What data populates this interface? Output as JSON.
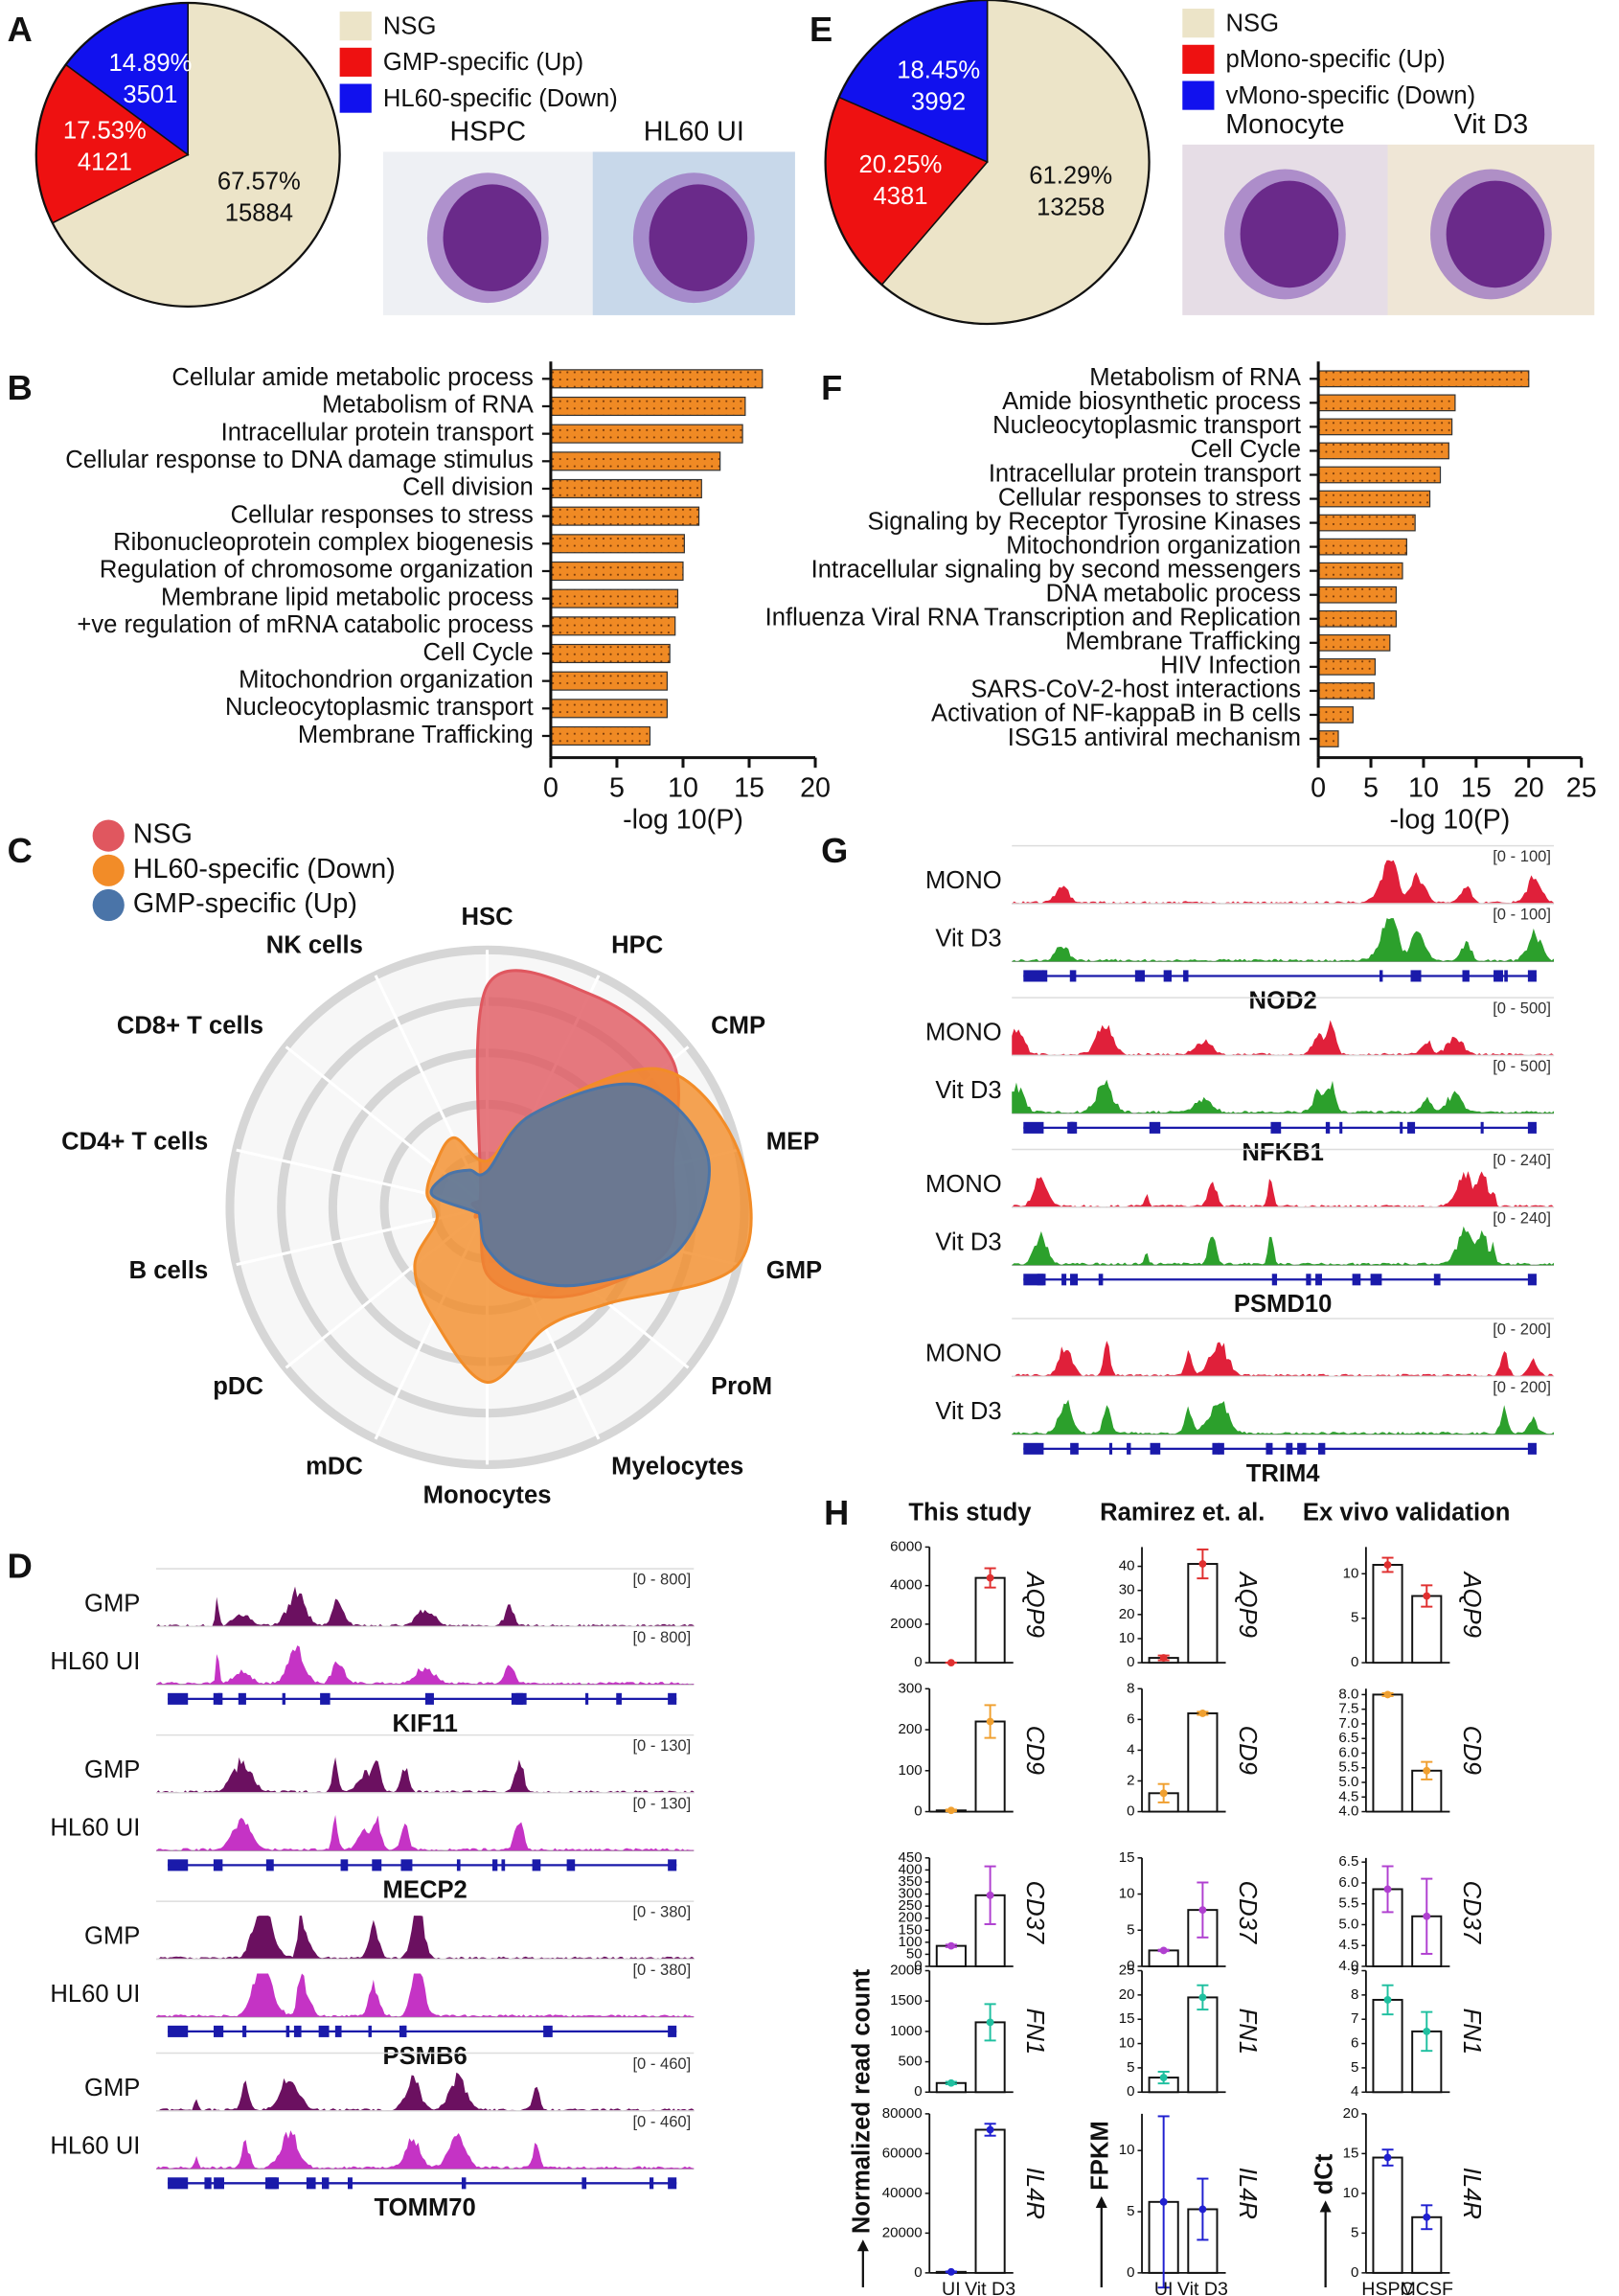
{
  "chart_data": [
    {
      "type": "pie",
      "panel": "A",
      "categories": [
        "NSG",
        "GMP-specific (Up)",
        "HL60-specific (Down)"
      ],
      "values": [
        67.57,
        17.53,
        14.89
      ],
      "value_labels": [
        "67.57%",
        "17.53%",
        "14.89%"
      ],
      "counts": [
        15884,
        4121,
        3501
      ],
      "colors": [
        "#ece4c8",
        "#ee1111",
        "#1111ee"
      ],
      "image_labels": [
        "HSPC",
        "HL60 UI"
      ]
    },
    {
      "type": "pie",
      "panel": "E",
      "categories": [
        "NSG",
        "pMono-specific (Up)",
        "vMono-specific (Down)"
      ],
      "values": [
        61.29,
        20.25,
        18.45
      ],
      "value_labels": [
        "61.29%",
        "20.25%",
        "18.45%"
      ],
      "counts": [
        13258,
        4381,
        3992
      ],
      "colors": [
        "#ece4c8",
        "#ee1111",
        "#1111ee"
      ],
      "image_labels": [
        "Monocyte",
        "Vit D3"
      ]
    },
    {
      "type": "hbar",
      "panel": "B",
      "categories": [
        "Cellular amide metabolic process",
        "Metabolism of RNA",
        "Intracellular protein transport",
        "Cellular response to DNA damage stimulus",
        "Cell division",
        "Cellular responses to stress",
        "Ribonucleoprotein complex biogenesis",
        "Regulation of chromosome organization",
        "Membrane lipid metabolic process",
        "+ve regulation of mRNA catabolic process",
        "Cell Cycle",
        "Mitochondrion organization",
        "Nucleocytoplasmic transport",
        "Membrane Trafficking"
      ],
      "values": [
        16,
        14.7,
        14.5,
        12.8,
        11.4,
        11.2,
        10.1,
        10.0,
        9.6,
        9.4,
        9.0,
        8.8,
        8.8,
        7.5
      ],
      "color": "#f08a24",
      "xlim": [
        0,
        20
      ],
      "xticks": [
        0,
        5,
        10,
        15,
        20
      ],
      "xlabel": "-log 10(P)"
    },
    {
      "type": "hbar",
      "panel": "F",
      "categories": [
        "Metabolism of RNA",
        "Amide biosynthetic process",
        "Nucleocytoplasmic transport",
        "Cell Cycle",
        "Intracellular protein transport",
        "Cellular responses to stress",
        "Signaling by Receptor Tyrosine Kinases",
        "Mitochondrion organization",
        "Intracellular signaling by second messengers",
        "DNA metabolic process",
        "Influenza Viral RNA Transcription and Replication",
        "Membrane Trafficking",
        "HIV Infection",
        "SARS-CoV-2-host interactions",
        "Activation of NF-kappaB in B cells",
        "ISG15 antiviral mechanism"
      ],
      "values": [
        20,
        13,
        12.7,
        12.4,
        11.6,
        10.6,
        9.2,
        8.4,
        8.0,
        7.4,
        7.4,
        6.8,
        5.4,
        5.3,
        3.3,
        1.9
      ],
      "color": "#f08a24",
      "xlim": [
        0,
        25
      ],
      "xticks": [
        0,
        5,
        10,
        15,
        20,
        25
      ],
      "xlabel": "-log 10(P)"
    },
    {
      "type": "radar",
      "panel": "C",
      "axes": [
        "HSC",
        "HPC",
        "CMP",
        "MEP",
        "GMP",
        "ProM",
        "Myelocytes",
        "Monocytes",
        "mDC",
        "pDC",
        "B cells",
        "CD4+ T cells",
        "CD8+ T cells",
        "NK cells"
      ],
      "rlim": [
        0,
        5
      ],
      "rticks": [
        1,
        2,
        3,
        4,
        5
      ],
      "series": [
        {
          "name": "NSG",
          "color": "#e0575f",
          "values": [
            4.3,
            4.6,
            4.6,
            3.7,
            3.6,
            2.6,
            1.9,
            1.3,
            0.3,
            0.3,
            0.2,
            0.3,
            0.2,
            0.3
          ]
        },
        {
          "name": "HL60-specific (Down)",
          "color": "#f28c28",
          "values": [
            0.9,
            2.0,
            4.3,
            5.0,
            5.0,
            3.0,
            2.6,
            3.4,
            2.4,
            1.8,
            1.0,
            1.2,
            1.3,
            1.5
          ]
        },
        {
          "name": "GMP-specific (Up)",
          "color": "#4a74a8",
          "values": [
            0.7,
            2.0,
            3.8,
            4.4,
            3.8,
            2.4,
            1.5,
            0.8,
            0.3,
            0.2,
            0.3,
            1.1,
            1.0,
            0.8
          ]
        }
      ]
    },
    {
      "type": "tracks",
      "panel": "D",
      "tracks": [
        "GMP",
        "HL60 UI"
      ],
      "colors": [
        "#6b1060",
        "#c533c5"
      ],
      "genes": [
        {
          "name": "KIF11",
          "ranges": [
            "[0 - 800]",
            "[0 - 800]"
          ]
        },
        {
          "name": "MECP2",
          "ranges": [
            "[0 - 130]",
            "[0 - 130]"
          ]
        },
        {
          "name": "PSMB6",
          "ranges": [
            "[0 - 380]",
            "[0 - 380]"
          ]
        },
        {
          "name": "TOMM70",
          "ranges": [
            "[0 - 460]",
            "[0 - 460]"
          ]
        }
      ]
    },
    {
      "type": "tracks",
      "panel": "G",
      "tracks": [
        "MONO",
        "Vit D3"
      ],
      "colors": [
        "#e0203a",
        "#2ca02c"
      ],
      "genes": [
        {
          "name": "NOD2",
          "ranges": [
            "[0 - 100]",
            "[0 - 100]"
          ]
        },
        {
          "name": "NFKB1",
          "ranges": [
            "[0 - 500]",
            "[0 - 500]"
          ]
        },
        {
          "name": "PSMD10",
          "ranges": [
            "[0 - 240]",
            "[0 - 240]"
          ]
        },
        {
          "name": "TRIM4",
          "ranges": [
            "[0 - 200]",
            "[0 - 200]"
          ]
        }
      ]
    },
    {
      "type": "bar_grid",
      "panel": "H",
      "columns": [
        {
          "title": "This study",
          "ylabel": "Normalized read count",
          "categories": [
            "UI",
            "Vit D3"
          ],
          "plots": [
            {
              "gene": "AQP9",
              "color": "#e03030",
              "values": [
                0,
                4400
              ],
              "errors": [
                0,
                500
              ],
              "ylim": [
                0,
                6000
              ],
              "yticks": [
                0,
                2000,
                4000,
                6000
              ]
            },
            {
              "gene": "CD9",
              "color": "#f0a030",
              "values": [
                3,
                220
              ],
              "errors": [
                2,
                40
              ],
              "ylim": [
                0,
                300
              ],
              "yticks": [
                0,
                100,
                200,
                300
              ]
            },
            {
              "gene": "CD37",
              "color": "#b040d0",
              "values": [
                85,
                295
              ],
              "errors": [
                5,
                120
              ],
              "ylim": [
                0,
                450
              ],
              "yticks": [
                0,
                50,
                100,
                150,
                200,
                250,
                300,
                350,
                400,
                450
              ]
            },
            {
              "gene": "FN1",
              "color": "#20c0a0",
              "values": [
                150,
                1150
              ],
              "errors": [
                20,
                300
              ],
              "ylim": [
                0,
                2000
              ],
              "yticks": [
                0,
                500,
                1000,
                1500,
                2000
              ]
            },
            {
              "gene": "IL4R",
              "color": "#2020d0",
              "values": [
                500,
                72000
              ],
              "errors": [
                200,
                3000
              ],
              "ylim": [
                0,
                80000
              ],
              "yticks": [
                0,
                20000,
                40000,
                60000,
                80000
              ]
            }
          ]
        },
        {
          "title": "Ramirez et. al.",
          "ylabel": "FPKM",
          "categories": [
            "UI",
            "Vit D3"
          ],
          "plots": [
            {
              "gene": "AQP9",
              "color": "#e03030",
              "values": [
                2,
                41
              ],
              "errors": [
                1,
                6
              ],
              "ylim": [
                0,
                48
              ],
              "yticks": [
                0,
                10,
                20,
                30,
                40
              ]
            },
            {
              "gene": "CD9",
              "color": "#f0a030",
              "values": [
                1.2,
                6.4
              ],
              "errors": [
                0.6,
                0.1
              ],
              "ylim": [
                0,
                8
              ],
              "yticks": [
                0,
                2,
                4,
                6,
                8
              ]
            },
            {
              "gene": "CD37",
              "color": "#b040d0",
              "values": [
                2.2,
                7.8
              ],
              "errors": [
                0.1,
                3.8
              ],
              "ylim": [
                0,
                15
              ],
              "yticks": [
                0,
                5,
                10,
                15
              ]
            },
            {
              "gene": "FN1",
              "color": "#20c0a0",
              "values": [
                3,
                19.5
              ],
              "errors": [
                1.2,
                2.5
              ],
              "ylim": [
                0,
                25
              ],
              "yticks": [
                0,
                5,
                10,
                15,
                20,
                25
              ]
            },
            {
              "gene": "IL4R",
              "color": "#2020d0",
              "values": [
                5.8,
                5.2
              ],
              "errors": [
                7,
                2.5
              ],
              "ylim": [
                0,
                13
              ],
              "yticks": [
                0,
                5,
                10
              ]
            }
          ]
        },
        {
          "title": "Ex vivo validation",
          "ylabel": "dCt",
          "categories": [
            "HSPC",
            "MCSF"
          ],
          "plots": [
            {
              "gene": "AQP9",
              "color": "#e03030",
              "values": [
                11,
                7.5
              ],
              "errors": [
                0.8,
                1.2
              ],
              "ylim": [
                0,
                13
              ],
              "yticks": [
                0,
                5,
                10
              ]
            },
            {
              "gene": "CD9",
              "color": "#f0a030",
              "values": [
                8.0,
                5.4
              ],
              "errors": [
                0.05,
                0.3
              ],
              "ylim": [
                4,
                8.2
              ],
              "yticks": [
                {
                  "value": 4,
                  "label": "4.0"
                },
                4.5,
                {
                  "value": 5,
                  "label": "5.0"
                },
                5.5,
                {
                  "value": 6,
                  "label": "6.0"
                },
                6.5,
                {
                  "value": 7,
                  "label": "7.0"
                },
                7.5,
                {
                  "value": 8,
                  "label": "8.0"
                }
              ]
            },
            {
              "gene": "CD37",
              "color": "#b040d0",
              "values": [
                5.85,
                5.2
              ],
              "errors": [
                0.55,
                0.9
              ],
              "ylim": [
                4,
                6.6
              ],
              "yticks": [
                {
                  "value": 4,
                  "label": "4.0"
                },
                4.5,
                {
                  "value": 5,
                  "label": "5.0"
                },
                5.5,
                {
                  "value": 6,
                  "label": "6.0"
                },
                6.5
              ]
            },
            {
              "gene": "FN1",
              "color": "#20c0a0",
              "values": [
                7.8,
                6.5
              ],
              "errors": [
                0.6,
                0.8
              ],
              "ylim": [
                4,
                9
              ],
              "yticks": [
                4,
                5,
                6,
                7,
                8,
                9
              ]
            },
            {
              "gene": "IL4R",
              "color": "#2020d0",
              "values": [
                14.5,
                7
              ],
              "errors": [
                1,
                1.5
              ],
              "ylim": [
                0,
                20
              ],
              "yticks": [
                0,
                5,
                10,
                15,
                20
              ]
            }
          ]
        }
      ]
    }
  ]
}
